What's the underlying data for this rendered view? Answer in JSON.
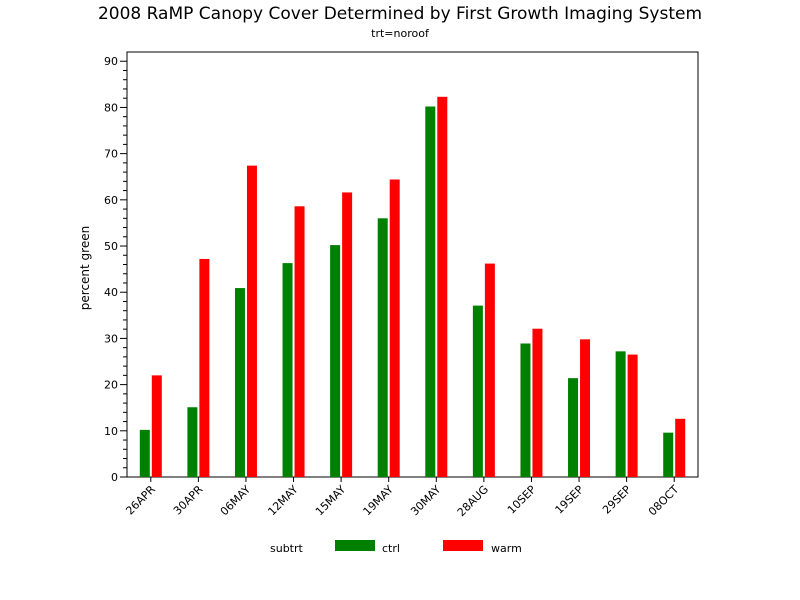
{
  "chart_data": {
    "type": "bar",
    "title": "2008 RaMP Canopy Cover Determined by First Growth Imaging System",
    "subtitle": "trt=noroof",
    "xlabel": "",
    "ylabel": "percent green",
    "ylim": [
      0,
      92
    ],
    "yticks": [
      0,
      10,
      20,
      30,
      40,
      50,
      60,
      70,
      80,
      90
    ],
    "categories": [
      "26APR",
      "30APR",
      "06MAY",
      "12MAY",
      "15MAY",
      "19MAY",
      "30MAY",
      "28AUG",
      "10SEP",
      "19SEP",
      "29SEP",
      "08OCT"
    ],
    "series": [
      {
        "name": "ctrl",
        "color": "#008000",
        "values": [
          10.2,
          15.1,
          40.9,
          46.3,
          50.2,
          56.0,
          80.2,
          37.1,
          28.9,
          21.4,
          27.2,
          9.6
        ]
      },
      {
        "name": "warm",
        "color": "#ff0000",
        "values": [
          22.0,
          47.2,
          67.4,
          58.6,
          61.6,
          64.4,
          82.3,
          46.2,
          32.1,
          29.8,
          26.5,
          12.6
        ]
      }
    ],
    "legend": {
      "title": "subtrt",
      "placement": "bottom"
    },
    "grid": false
  }
}
